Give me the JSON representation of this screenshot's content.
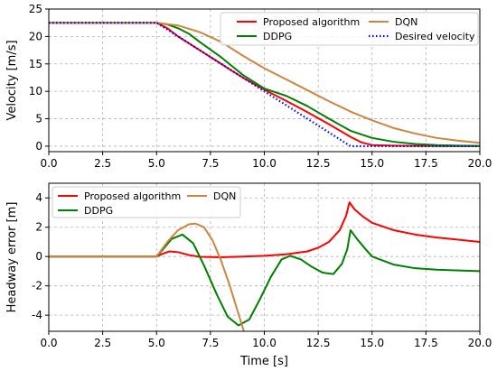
{
  "chart_data": [
    {
      "type": "line",
      "xlabel": "",
      "ylabel": "Velocity [m/s]",
      "xlim": [
        0,
        20
      ],
      "ylim": [
        -1,
        25
      ],
      "xticks": [
        "0.0",
        "2.5",
        "5.0",
        "7.5",
        "10.0",
        "12.5",
        "15.0",
        "17.5",
        "20.0"
      ],
      "yticks": [
        "0",
        "5",
        "10",
        "15",
        "20",
        "25"
      ],
      "grid": true,
      "legend_position": "top-right",
      "series": [
        {
          "name": "Proposed algorithm",
          "color": "#ff0000",
          "style": "solid",
          "x": [
            0,
            5,
            5.5,
            6,
            7,
            8,
            9,
            10,
            11,
            12,
            13,
            14,
            14.5,
            15,
            16,
            17,
            18,
            19,
            20
          ],
          "y": [
            22.5,
            22.5,
            21.5,
            20,
            17.5,
            15,
            12.5,
            10.3,
            8.3,
            6.2,
            4,
            1.7,
            0.7,
            0.2,
            0.1,
            0.05,
            0.02,
            0.01,
            0
          ]
        },
        {
          "name": "DDPG",
          "color": "#008000",
          "style": "solid",
          "x": [
            0,
            5,
            5.5,
            6,
            6.5,
            7,
            8,
            9,
            10,
            11,
            12,
            13,
            14,
            15,
            16,
            17,
            18,
            19,
            20
          ],
          "y": [
            22.5,
            22.5,
            22.2,
            21.5,
            20.5,
            19,
            16.2,
            13,
            10.5,
            9.2,
            7.3,
            5,
            2.8,
            1.5,
            0.8,
            0.4,
            0.2,
            0.1,
            0.05
          ]
        },
        {
          "name": "DQN",
          "color": "#cd853f",
          "style": "solid",
          "x": [
            0,
            5,
            6,
            7,
            8,
            9,
            10,
            11,
            12,
            13,
            14,
            15,
            16,
            17,
            18,
            19,
            20
          ],
          "y": [
            22.5,
            22.5,
            22,
            20.8,
            19,
            16.5,
            14.2,
            12.2,
            10.2,
            8.2,
            6.3,
            4.7,
            3.3,
            2.3,
            1.5,
            1,
            0.6
          ]
        },
        {
          "name": "Desired velocity",
          "color": "#0000ff",
          "style": "dotted",
          "x": [
            0,
            5,
            14,
            20
          ],
          "y": [
            22.5,
            22.5,
            0,
            0
          ]
        }
      ]
    },
    {
      "type": "line",
      "xlabel": "Time [s]",
      "ylabel": "Headway error [m]",
      "xlim": [
        0,
        20
      ],
      "ylim": [
        -5.1,
        5
      ],
      "xticks": [
        "0.0",
        "2.5",
        "5.0",
        "7.5",
        "10.0",
        "12.5",
        "15.0",
        "17.5",
        "20.0"
      ],
      "yticks": [
        "-4",
        "-2",
        "0",
        "2",
        "4"
      ],
      "grid": true,
      "legend_position": "top-left",
      "series": [
        {
          "name": "Proposed algorithm",
          "color": "#ff0000",
          "style": "solid",
          "x": [
            0,
            5,
            5.3,
            5.6,
            6,
            6.5,
            7,
            8,
            9,
            10,
            11,
            12,
            12.5,
            13,
            13.5,
            13.8,
            13.95,
            14.2,
            14.6,
            15,
            16,
            17,
            18,
            19,
            20
          ],
          "y": [
            0,
            0,
            0.2,
            0.35,
            0.3,
            0.1,
            -0.02,
            -0.05,
            0,
            0.05,
            0.15,
            0.35,
            0.6,
            1,
            1.8,
            2.8,
            3.7,
            3.2,
            2.7,
            2.3,
            1.8,
            1.5,
            1.3,
            1.15,
            1.0
          ]
        },
        {
          "name": "DDPG",
          "color": "#008000",
          "style": "solid",
          "x": [
            0,
            5,
            5.3,
            5.7,
            6.2,
            6.7,
            7.2,
            7.8,
            8.3,
            8.8,
            9.3,
            9.8,
            10.3,
            10.8,
            11.2,
            11.7,
            12.2,
            12.7,
            13.2,
            13.6,
            13.85,
            14.0,
            14.3,
            14.7,
            15,
            16,
            17,
            18,
            19,
            20
          ],
          "y": [
            0,
            0,
            0.5,
            1.2,
            1.5,
            0.9,
            -0.6,
            -2.6,
            -4.1,
            -4.7,
            -4.3,
            -2.9,
            -1.4,
            -0.2,
            0.05,
            -0.2,
            -0.7,
            -1.1,
            -1.2,
            -0.5,
            0.5,
            1.8,
            1.2,
            0.5,
            0,
            -0.55,
            -0.8,
            -0.9,
            -0.95,
            -1.0
          ]
        },
        {
          "name": "DQN",
          "color": "#cd853f",
          "style": "solid",
          "x": [
            0,
            5,
            5.5,
            6,
            6.5,
            6.8,
            7.2,
            7.6,
            8,
            8.4,
            8.8,
            9.05
          ],
          "y": [
            0,
            0,
            1.0,
            1.8,
            2.2,
            2.25,
            2.0,
            1.1,
            -0.3,
            -2.0,
            -3.9,
            -5.1
          ]
        }
      ]
    }
  ]
}
